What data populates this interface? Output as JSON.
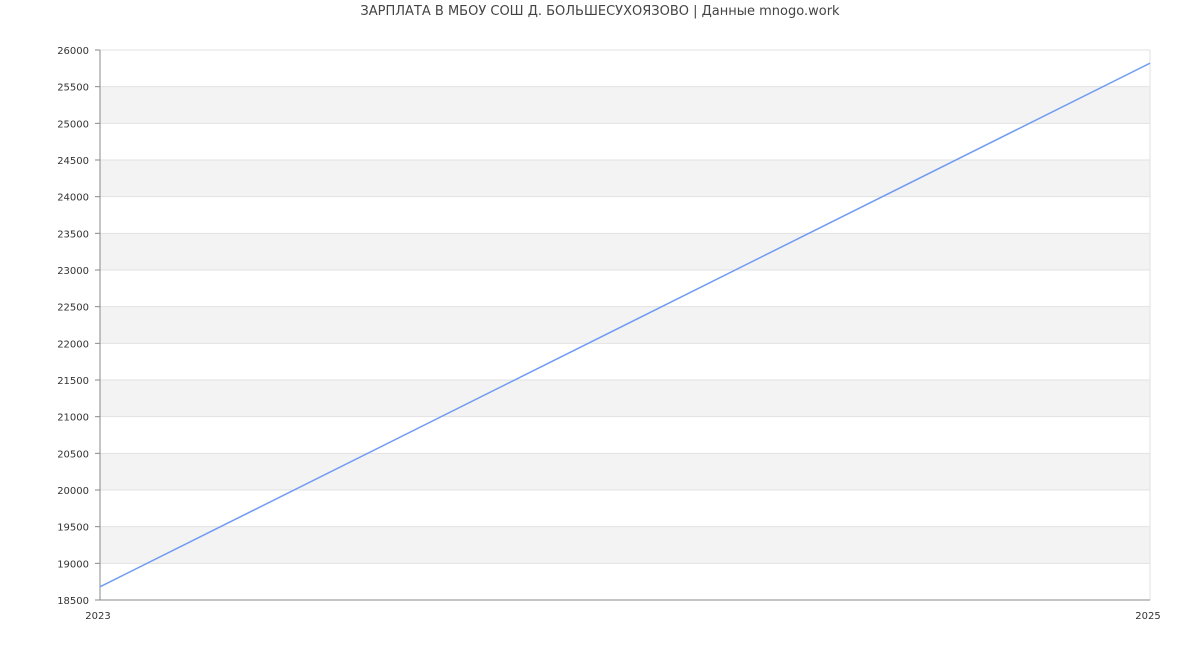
{
  "chart_data": {
    "type": "line",
    "title": "ЗАРПЛАТА В МБОУ СОШ Д. БОЛЬШЕСУХОЯЗОВО | Данные mnogo.work",
    "xlabel": "",
    "ylabel": "",
    "x": [
      2023,
      2025
    ],
    "x_ticks": [
      "2023",
      "2025"
    ],
    "xlim": [
      2023,
      2025
    ],
    "ylim": [
      18500,
      26000
    ],
    "y_ticks": [
      18500,
      19000,
      19500,
      20000,
      20500,
      21000,
      21500,
      22000,
      22500,
      23000,
      23500,
      24000,
      24500,
      25000,
      25500,
      26000
    ],
    "series": [
      {
        "values": [
          18680,
          25820
        ],
        "color": "#6f9cf3"
      }
    ],
    "grid": true,
    "band_color": "#f3f3f3",
    "legend": "none"
  }
}
